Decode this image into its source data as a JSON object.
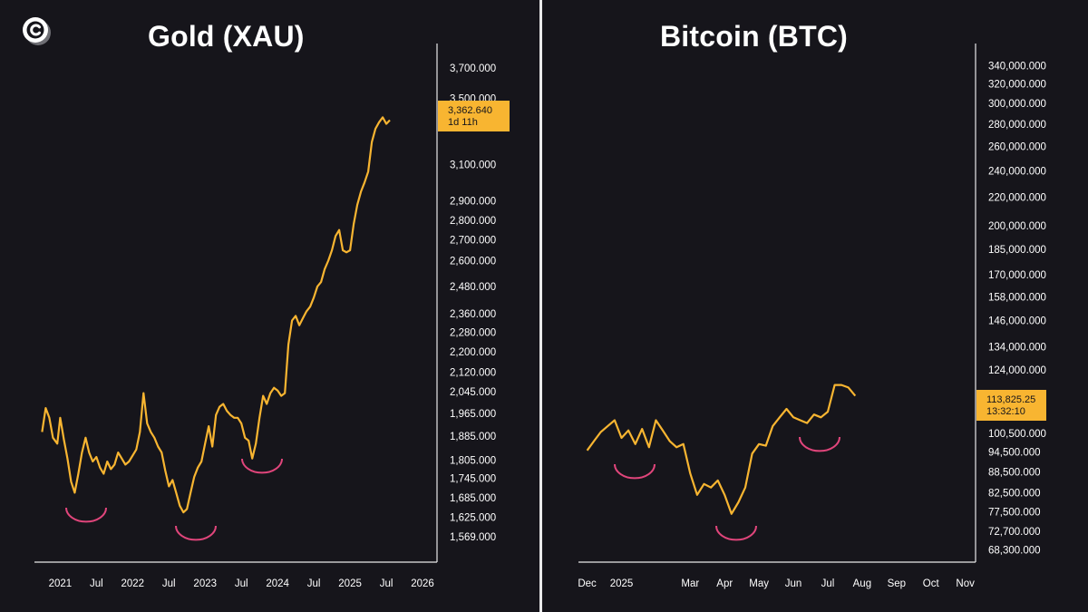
{
  "colors": {
    "background": "#16151b",
    "line": "#f8b531",
    "badge": "#f8b531",
    "smile": "#e0457b",
    "axis": "#e9e9ea",
    "text": "#ffffff"
  },
  "logo": {
    "icon": "copyright-c-logo-icon"
  },
  "chart_data": [
    {
      "type": "line",
      "title": "Gold (XAU)",
      "scale": "log",
      "xlabel": "",
      "ylabel": "",
      "x_ticks": [
        "2021",
        "Jul",
        "2022",
        "Jul",
        "2023",
        "Jul",
        "2024",
        "Jul",
        "2025",
        "Jul",
        "2026"
      ],
      "y_ticks": [
        "3,700.000",
        "3,500.000",
        "3,100.000",
        "2,900.000",
        "2,800.000",
        "2,700.000",
        "2,600.000",
        "2,480.000",
        "2,360.000",
        "2,280.000",
        "2,200.000",
        "2,120.000",
        "2,045.000",
        "1,965.000",
        "1,885.000",
        "1,805.000",
        "1,745.000",
        "1,685.000",
        "1,625.000",
        "1,569.000"
      ],
      "y_tick_values": [
        3700,
        3500,
        3100,
        2900,
        2800,
        2700,
        2600,
        2480,
        2360,
        2280,
        2200,
        2120,
        2045,
        1965,
        1885,
        1805,
        1745,
        1685,
        1625,
        1569
      ],
      "x_tick_values": [
        2021.0,
        2021.5,
        2022.0,
        2022.5,
        2023.0,
        2023.5,
        2024.0,
        2024.5,
        2025.0,
        2025.5,
        2026.0
      ],
      "xlim": [
        2020.67,
        2026.2
      ],
      "ylim": [
        1540,
        3780
      ],
      "last_price_label": {
        "price": "3,362.640",
        "countdown": "1d  11h"
      },
      "series": [
        {
          "x": [
            2020.75,
            2020.8,
            2020.85,
            2020.9,
            2020.96,
            2021.0,
            2021.05,
            2021.1,
            2021.15,
            2021.2,
            2021.25,
            2021.3,
            2021.35,
            2021.4,
            2021.45,
            2021.5,
            2021.55,
            2021.6,
            2021.65,
            2021.7,
            2021.75,
            2021.8,
            2021.85,
            2021.9,
            2021.95,
            2022.0,
            2022.05,
            2022.1,
            2022.15,
            2022.2,
            2022.25,
            2022.3,
            2022.35,
            2022.4,
            2022.45,
            2022.5,
            2022.55,
            2022.6,
            2022.65,
            2022.7,
            2022.75,
            2022.8,
            2022.85,
            2022.9,
            2022.95,
            2023.0,
            2023.05,
            2023.1,
            2023.15,
            2023.2,
            2023.25,
            2023.3,
            2023.35,
            2023.4,
            2023.45,
            2023.5,
            2023.55,
            2023.6,
            2023.65,
            2023.7,
            2023.75,
            2023.8,
            2023.85,
            2023.9,
            2023.95,
            2024.0,
            2024.05,
            2024.1,
            2024.15,
            2024.2,
            2024.25,
            2024.3,
            2024.35,
            2024.4,
            2024.45,
            2024.5,
            2024.55,
            2024.6,
            2024.65,
            2024.7,
            2024.75,
            2024.8,
            2024.85,
            2024.9,
            2024.95,
            2025.0,
            2025.05,
            2025.1,
            2025.15,
            2025.2,
            2025.25,
            2025.3,
            2025.35,
            2025.4,
            2025.45,
            2025.5,
            2025.55
          ],
          "y": [
            1900,
            1985,
            1950,
            1880,
            1860,
            1950,
            1875,
            1810,
            1735,
            1700,
            1760,
            1830,
            1880,
            1830,
            1800,
            1815,
            1780,
            1760,
            1800,
            1775,
            1790,
            1830,
            1810,
            1790,
            1800,
            1820,
            1840,
            1900,
            2040,
            1930,
            1900,
            1880,
            1850,
            1830,
            1770,
            1720,
            1740,
            1700,
            1660,
            1640,
            1650,
            1700,
            1750,
            1780,
            1800,
            1860,
            1920,
            1850,
            1960,
            1990,
            2000,
            1975,
            1960,
            1950,
            1950,
            1930,
            1880,
            1870,
            1810,
            1860,
            1950,
            2030,
            2000,
            2040,
            2060,
            2050,
            2030,
            2040,
            2230,
            2330,
            2350,
            2310,
            2340,
            2370,
            2390,
            2430,
            2480,
            2500,
            2560,
            2600,
            2650,
            2720,
            2750,
            2650,
            2640,
            2650,
            2780,
            2880,
            2950,
            3000,
            3060,
            3230,
            3310,
            3350,
            3380,
            3340,
            3362.64
          ]
        }
      ],
      "annotations": [
        "smile-1",
        "smile-2",
        "smile-3"
      ]
    },
    {
      "type": "line",
      "title": "Bitcoin (BTC)",
      "scale": "log",
      "xlabel": "",
      "ylabel": "",
      "x_ticks": [
        "Dec",
        "2025",
        "Mar",
        "Apr",
        "May",
        "Jun",
        "Jul",
        "Aug",
        "Sep",
        "Oct",
        "Nov"
      ],
      "x_tick_values": [
        0.0,
        1.0,
        3.0,
        4.0,
        5.0,
        6.0,
        7.0,
        8.0,
        9.0,
        10.0,
        11.0
      ],
      "y_ticks": [
        "340,000.000",
        "320,000.000",
        "300,000.000",
        "280,000.000",
        "260,000.000",
        "240,000.000",
        "220,000.000",
        "200,000.000",
        "185,000.000",
        "170,000.000",
        "158,000.000",
        "146,000.000",
        "134,000.000",
        "124,000.000",
        "113,700.000",
        "100,500.000",
        "94,500.000",
        "88,500.000",
        "82,500.000",
        "77,500.000",
        "72,700.000",
        "68,300.000"
      ],
      "y_tick_values": [
        340000,
        320000,
        300000,
        280000,
        260000,
        240000,
        220000,
        200000,
        185000,
        170000,
        158000,
        146000,
        134000,
        124000,
        113700,
        100500,
        94500,
        88500,
        82500,
        77500,
        72700,
        68300
      ],
      "xlim": [
        -0.2,
        11.3
      ],
      "ylim": [
        66000,
        355000
      ],
      "last_price_label": {
        "price": "113,825.25",
        "countdown": "13:32:10"
      },
      "series": [
        {
          "x": [
            0.0,
            0.2,
            0.4,
            0.6,
            0.8,
            1.0,
            1.2,
            1.4,
            1.6,
            1.8,
            2.0,
            2.2,
            2.4,
            2.6,
            2.8,
            3.0,
            3.2,
            3.4,
            3.6,
            3.8,
            4.0,
            4.2,
            4.4,
            4.6,
            4.8,
            5.0,
            5.2,
            5.4,
            5.6,
            5.8,
            6.0,
            6.2,
            6.4,
            6.6,
            6.8,
            7.0,
            7.2,
            7.4,
            7.6,
            7.8
          ],
          "y": [
            95000,
            98000,
            101000,
            103000,
            105000,
            99000,
            101500,
            97000,
            102000,
            96000,
            105000,
            101500,
            98000,
            96000,
            97000,
            88000,
            82000,
            85000,
            84000,
            86000,
            82000,
            77000,
            80000,
            84000,
            94000,
            97000,
            96500,
            103000,
            106000,
            109000,
            106000,
            105000,
            104000,
            107000,
            106000,
            108000,
            118000,
            118000,
            117000,
            113825.25
          ]
        }
      ],
      "annotations": [
        "smile-1",
        "smile-2",
        "smile-3"
      ]
    }
  ]
}
